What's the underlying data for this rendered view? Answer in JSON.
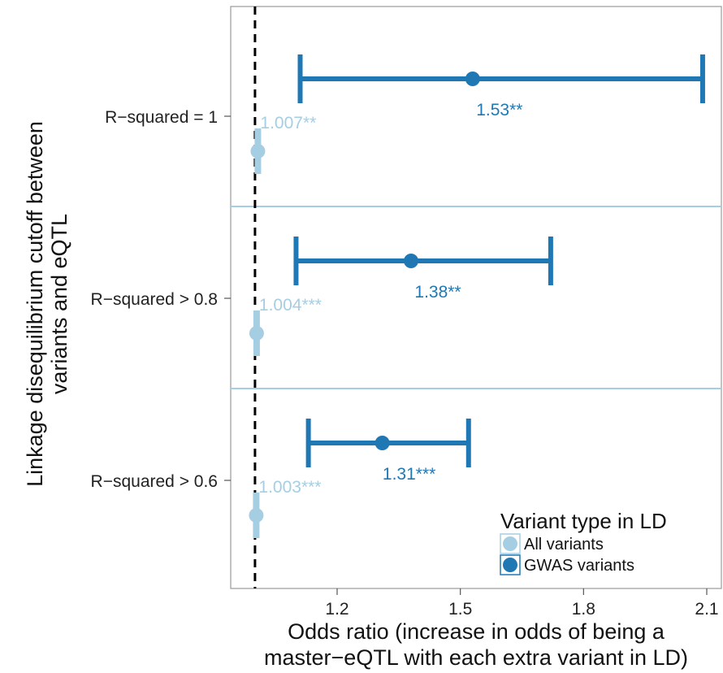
{
  "chart_data": {
    "type": "forest",
    "xlabel_line1": "Odds ratio (increase in odds of being a",
    "xlabel_line2": "master−eQTL with each extra variant in LD)",
    "ylabel_line1": "Linkage disequilibrium cutoff between",
    "ylabel_line2": "variants and eQTL",
    "xlim": [
      0.99,
      2.1
    ],
    "x_ticks": [
      1.2,
      1.5,
      1.8,
      2.1
    ],
    "x_tick_labels": [
      "1.2",
      "1.5",
      "1.8",
      "2.1"
    ],
    "reference_line": 1.0,
    "categories": [
      "R−squared = 1",
      "R−squared > 0.8",
      "R−squared > 0.6"
    ],
    "legend_title": "Variant type in LD",
    "legend_placement": "bottom-right",
    "series": [
      {
        "name": "All variants",
        "color": "#a6cee3",
        "points": [
          {
            "estimate": 1.007,
            "lower": 1.0,
            "upper": 1.012,
            "label": "1.007**"
          },
          {
            "estimate": 1.004,
            "lower": 1.0,
            "upper": 1.007,
            "label": "1.004***"
          },
          {
            "estimate": 1.003,
            "lower": 1.0,
            "upper": 1.006,
            "label": "1.003***"
          }
        ]
      },
      {
        "name": "GWAS variants",
        "color": "#1f78b4",
        "points": [
          {
            "estimate": 1.53,
            "lower": 1.11,
            "upper": 2.09,
            "label": "1.53**"
          },
          {
            "estimate": 1.38,
            "lower": 1.1,
            "upper": 1.72,
            "label": "1.38**"
          },
          {
            "estimate": 1.31,
            "lower": 1.13,
            "upper": 1.52,
            "label": "1.31***"
          }
        ]
      }
    ],
    "panel_separator_color": "#a6cee3",
    "panel_border_color": "#999999"
  }
}
